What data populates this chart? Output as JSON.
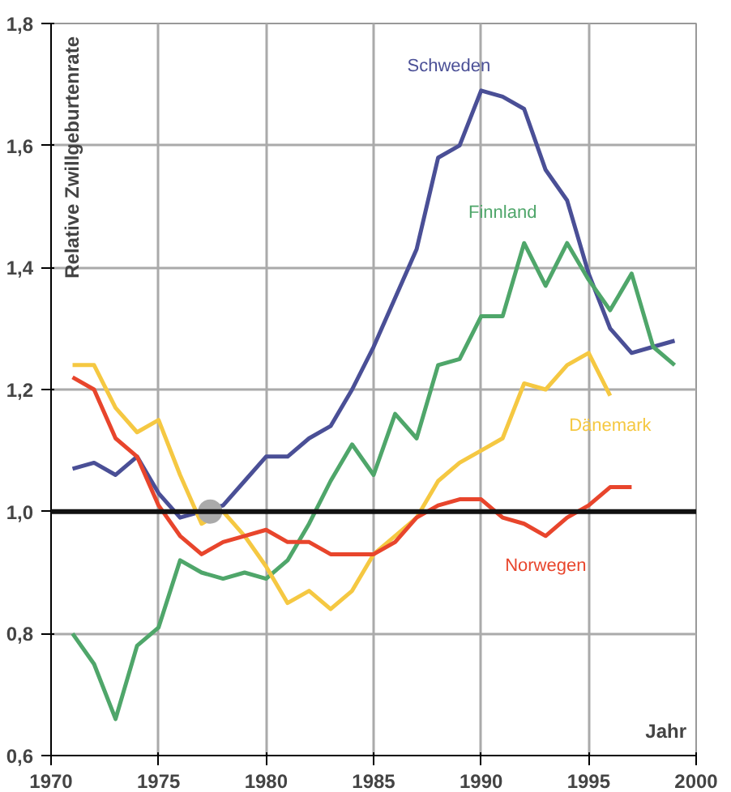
{
  "chart_data": {
    "type": "line",
    "xlabel": "Jahr",
    "ylabel": "Relative Zwillgeburtenrate",
    "xlim": [
      1970,
      2000
    ],
    "xticks": [
      1970,
      1975,
      1980,
      1985,
      1990,
      1995,
      2000
    ],
    "ylim": [
      0.6,
      1.8
    ],
    "yticks": [
      {
        "value": 0.6,
        "label": "0,6"
      },
      {
        "value": 0.8,
        "label": "0,8"
      },
      {
        "value": 1.0,
        "label": "1,0"
      },
      {
        "value": 1.2,
        "label": "1,2"
      },
      {
        "value": 1.4,
        "label": "1,4"
      },
      {
        "value": 1.6,
        "label": "1,6"
      },
      {
        "value": 1.8,
        "label": "1,8"
      }
    ],
    "grid": true,
    "marker": "none",
    "line_style": "solid",
    "ref_lines": [
      {
        "axis": "y",
        "value": 1.0,
        "label": null,
        "color": "#111111"
      }
    ],
    "series": [
      {
        "name": "Schweden",
        "color": "#4a4f96",
        "x": [
          1971,
          1972,
          1973,
          1974,
          1975,
          1976,
          1977,
          1978,
          1979,
          1980,
          1981,
          1982,
          1983,
          1984,
          1985,
          1986,
          1987,
          1988,
          1989,
          1990,
          1991,
          1992,
          1993,
          1994,
          1995,
          1996,
          1997,
          1998,
          1999
        ],
        "values": [
          1.07,
          1.08,
          1.06,
          1.09,
          1.03,
          0.99,
          1.0,
          1.01,
          1.05,
          1.09,
          1.09,
          1.12,
          1.14,
          1.2,
          1.27,
          1.35,
          1.43,
          1.58,
          1.6,
          1.69,
          1.68,
          1.66,
          1.56,
          1.51,
          1.39,
          1.3,
          1.26,
          1.27,
          1.28
        ]
      },
      {
        "name": "Finnland",
        "color": "#4fa66a",
        "x": [
          1971,
          1972,
          1973,
          1974,
          1975,
          1976,
          1977,
          1978,
          1979,
          1980,
          1981,
          1982,
          1983,
          1984,
          1985,
          1986,
          1987,
          1988,
          1989,
          1990,
          1991,
          1992,
          1993,
          1994,
          1995,
          1996,
          1997,
          1998,
          1999
        ],
        "values": [
          0.8,
          0.75,
          0.66,
          0.78,
          0.81,
          0.92,
          0.9,
          0.89,
          0.9,
          0.89,
          0.92,
          0.98,
          1.05,
          1.11,
          1.06,
          1.16,
          1.12,
          1.24,
          1.25,
          1.32,
          1.32,
          1.44,
          1.37,
          1.44,
          1.38,
          1.33,
          1.39,
          1.27,
          1.24
        ]
      },
      {
        "name": "Dänemark",
        "color": "#f5c842",
        "x": [
          1971,
          1972,
          1973,
          1974,
          1975,
          1976,
          1977,
          1978,
          1979,
          1980,
          1981,
          1982,
          1983,
          1984,
          1985,
          1986,
          1987,
          1988,
          1989,
          1990,
          1991,
          1992,
          1993,
          1994,
          1995,
          1996
        ],
        "values": [
          1.24,
          1.24,
          1.17,
          1.13,
          1.15,
          1.06,
          0.98,
          1.0,
          0.96,
          0.91,
          0.85,
          0.87,
          0.84,
          0.87,
          0.93,
          0.96,
          0.99,
          1.05,
          1.08,
          1.1,
          1.12,
          1.21,
          1.2,
          1.24,
          1.26,
          1.19
        ]
      },
      {
        "name": "Norwegen",
        "color": "#e8452c",
        "x": [
          1971,
          1972,
          1973,
          1974,
          1975,
          1976,
          1977,
          1978,
          1979,
          1980,
          1981,
          1982,
          1983,
          1984,
          1985,
          1986,
          1987,
          1988,
          1989,
          1990,
          1991,
          1992,
          1993,
          1994,
          1995,
          1996,
          1997
        ],
        "values": [
          1.22,
          1.2,
          1.12,
          1.09,
          1.01,
          0.96,
          0.93,
          0.95,
          0.96,
          0.97,
          0.95,
          0.95,
          0.93,
          0.93,
          0.93,
          0.95,
          0.99,
          1.01,
          1.02,
          1.02,
          0.99,
          0.98,
          0.96,
          0.99,
          1.01,
          1.04,
          1.04
        ]
      },
      {
        "type": "scatter",
        "marker": "circle",
        "color": "#aaaaaa",
        "x": [
          1977.4
        ],
        "values": [
          1.0
        ]
      }
    ]
  }
}
